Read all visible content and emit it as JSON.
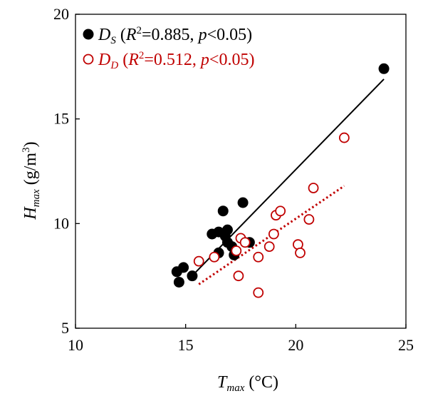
{
  "chart_data": {
    "type": "scatter",
    "xlim": [
      10,
      25
    ],
    "ylim": [
      5,
      20
    ],
    "xticks": [
      "10",
      "15",
      "20",
      "25"
    ],
    "yticks": [
      "5",
      "10",
      "15",
      "20"
    ],
    "xlabel": {
      "main": "T",
      "sub": "max",
      "unit": " (°C)"
    },
    "ylabel": {
      "main": "H",
      "sub": "max",
      "unit": " (g/m",
      "sup": "3",
      "close": ")"
    },
    "grid": false,
    "legend_position": "top-left",
    "series": [
      {
        "name": "D",
        "name_sub": "S",
        "stat_open": " (",
        "r_label": "R",
        "r_sup": "2",
        "r_value": "=0.885, ",
        "p_label": "p",
        "p_value": "<0.05)",
        "marker": "filled-circle",
        "color": "#000000",
        "trendline_style": "solid",
        "trendline": {
          "x": [
            15.2,
            24.0
          ],
          "y": [
            7.4,
            16.9
          ]
        },
        "points": [
          [
            14.6,
            7.7
          ],
          [
            14.7,
            7.2
          ],
          [
            14.9,
            7.9
          ],
          [
            15.3,
            7.5
          ],
          [
            16.2,
            9.5
          ],
          [
            16.5,
            9.6
          ],
          [
            16.5,
            8.6
          ],
          [
            16.7,
            10.6
          ],
          [
            16.8,
            9.4
          ],
          [
            16.9,
            9.7
          ],
          [
            16.9,
            9.1
          ],
          [
            17.1,
            8.9
          ],
          [
            17.2,
            8.5
          ],
          [
            17.6,
            11.0
          ],
          [
            17.9,
            9.1
          ],
          [
            24.0,
            17.4
          ]
        ]
      },
      {
        "name": "D",
        "name_sub": "D",
        "stat_open": " (",
        "r_label": "R",
        "r_sup": "2",
        "r_value": "=0.512, ",
        "p_label": "p",
        "p_value": "<0.05)",
        "marker": "open-circle",
        "color": "#c00000",
        "trendline_style": "dotted",
        "trendline": {
          "x": [
            15.6,
            22.2
          ],
          "y": [
            7.1,
            11.8
          ]
        },
        "points": [
          [
            15.6,
            8.2
          ],
          [
            16.3,
            8.4
          ],
          [
            17.3,
            8.7
          ],
          [
            17.4,
            7.5
          ],
          [
            17.5,
            9.3
          ],
          [
            17.7,
            9.1
          ],
          [
            18.3,
            8.4
          ],
          [
            18.3,
            6.7
          ],
          [
            18.8,
            8.9
          ],
          [
            19.0,
            9.5
          ],
          [
            19.1,
            10.4
          ],
          [
            19.3,
            10.6
          ],
          [
            20.1,
            9.0
          ],
          [
            20.2,
            8.6
          ],
          [
            20.6,
            10.2
          ],
          [
            20.8,
            11.7
          ],
          [
            22.2,
            14.1
          ]
        ]
      }
    ]
  }
}
